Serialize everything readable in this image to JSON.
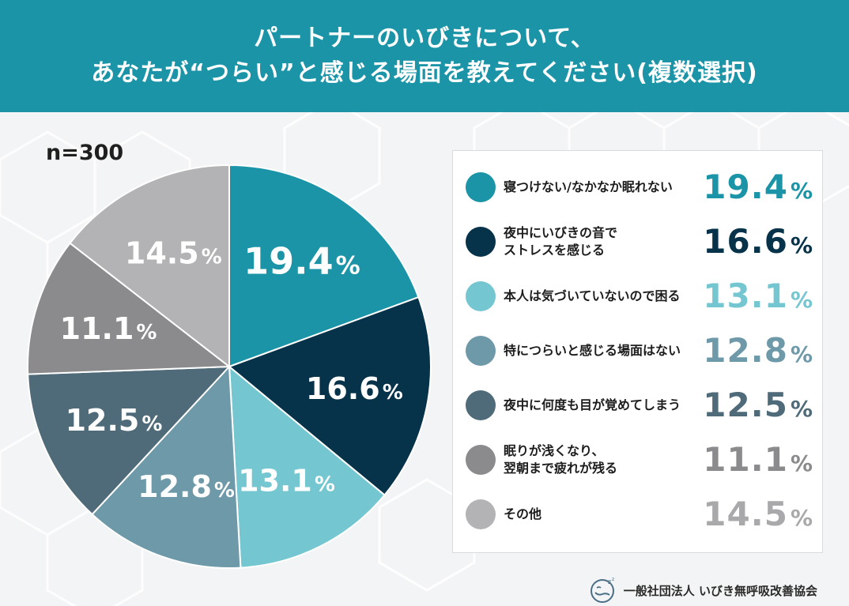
{
  "header": {
    "line1": "パートナーのいびきについて、",
    "line2": "あなたが“つらい”と感じる場面を教えてください(複数選択)"
  },
  "sample_size": "n=300",
  "colors": {
    "header_bg": "#1a94a6",
    "slices": [
      "#1a94a6",
      "#06324a",
      "#74c6d0",
      "#6e99a9",
      "#4f6a78",
      "#8b8b8e",
      "#b3b3b5"
    ]
  },
  "chart_data": {
    "type": "pie",
    "title": "パートナーのいびきについて、あなたが“つらい”と感じる場面を教えてください(複数選択)",
    "n": 300,
    "unit": "%",
    "start": "12 o'clock, clockwise",
    "slices": [
      {
        "label": "寝つけない/なかなか眠れない",
        "lines": [
          "寝つけない/なかなか眠れない"
        ],
        "value": 19.4,
        "display": "19.4",
        "color": "#1a94a6"
      },
      {
        "label": "夜中にいびきの音でストレスを感じる",
        "lines": [
          "夜中にいびきの音で",
          "ストレスを感じる"
        ],
        "value": 16.6,
        "display": "16.6",
        "color": "#06324a"
      },
      {
        "label": "本人は気づいていないので困る",
        "lines": [
          "本人は気づいていないので困る"
        ],
        "value": 13.1,
        "display": "13.1",
        "color": "#74c6d0"
      },
      {
        "label": "特につらいと感じる場面はない",
        "lines": [
          "特につらいと感じる場面はない"
        ],
        "value": 12.8,
        "display": "12.8",
        "color": "#6e99a9"
      },
      {
        "label": "夜中に何度も目が覚めてしまう",
        "lines": [
          "夜中に何度も目が覚めてしまう"
        ],
        "value": 12.5,
        "display": "12.5",
        "color": "#4f6a78"
      },
      {
        "label": "眠りが浅くなり、翌朝まで疲れが残る",
        "lines": [
          "眠りが浅くなり、",
          "翌朝まで疲れが残る"
        ],
        "value": 11.1,
        "display": "11.1",
        "color": "#8b8b8e"
      },
      {
        "label": "その他",
        "lines": [
          "その他"
        ],
        "value": 14.5,
        "display": "14.5",
        "color": "#b3b3b5"
      }
    ],
    "percent_symbol": "%"
  },
  "footer": {
    "org": "一般社団法人 いびき無呼吸改善協会",
    "logo_icon": "sleeping-face-icon"
  }
}
